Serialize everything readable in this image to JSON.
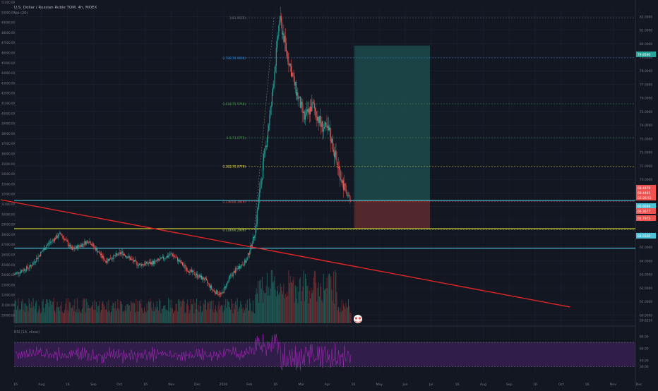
{
  "header": {
    "symbol": "U.S. Dollar / Russian Ruble TOM, 4h, MOEX",
    "volume_label": "Vol (20)"
  },
  "colors": {
    "background": "#131722",
    "grid": "#1e2230",
    "candle_up": "#26a69a",
    "candle_down": "#ef5350",
    "trendline": "#e02525",
    "yellow_line": "#f5f53a",
    "cyan_line": "#4dc3d8",
    "rsi_line": "#9c27b0",
    "rsi_band": "#3a1f55",
    "target_zone": "#1d4b4b",
    "stop_zone": "#5a2a2e",
    "text": "#787b86"
  },
  "chart_data": {
    "type": "candlestick",
    "price_axis_ticks": [
      "82.0000",
      "81.0000",
      "80.0000",
      "79.0000",
      "78.0000",
      "77.0000",
      "76.0000",
      "75.0000",
      "74.0000",
      "73.0000",
      "72.0000",
      "71.0000",
      "70.0000",
      "69.0000",
      "68.0000",
      "67.0000",
      "66.0000",
      "65.0000",
      "64.0000",
      "63.0000",
      "62.0000",
      "61.0000",
      "60.0000",
      "59.6250"
    ],
    "volume_axis_ticks": [
      "51000.00",
      "50000.00",
      "49000.00",
      "48000.00",
      "47000.00",
      "46000.00",
      "45000.00",
      "44000.00",
      "43000.00",
      "42000.00",
      "41000.00",
      "40000.00",
      "39000.00",
      "38000.00",
      "37000.00",
      "36000.00",
      "35000.00",
      "34000.00",
      "33000.00",
      "32000.00",
      "31000.00",
      "30000.00",
      "29000.00",
      "28000.00",
      "27000.00",
      "26000.00",
      "25000.00",
      "24000.00",
      "23000.00",
      "22000.00",
      "21000.00",
      "20000.00"
    ],
    "rsi_axis_ticks": [
      "80.00",
      "60.00",
      "40.00",
      "30.00"
    ],
    "time_axis_ticks": [
      "16",
      "Aug",
      "16",
      "Sep",
      "Oct",
      "16",
      "Nov",
      "Dec",
      "2020",
      "Feb",
      "16",
      "Mar",
      "Apr",
      "16",
      "May",
      "Jun",
      "Jul",
      "16",
      "Aug",
      "Sep",
      "16",
      "Oct",
      "16",
      "Nov",
      "Dec"
    ],
    "price_labels": [
      {
        "text": "79.8590",
        "kind": "green"
      },
      {
        "text": "68.4979",
        "kind": "red"
      },
      {
        "text": "68.4465",
        "kind": "red"
      },
      {
        "text": "03:26:51",
        "kind": "red"
      },
      {
        "text": "66.9099",
        "kind": "cyan"
      },
      {
        "text": "66.3677",
        "kind": "red"
      },
      {
        "text": "65.7975",
        "kind": "red"
      },
      {
        "text": "64.9300",
        "kind": "cyan"
      }
    ],
    "fib_levels": [
      {
        "label": "1(81.9155)",
        "value": 81.9155
      },
      {
        "label": "0.786(78.9600)",
        "value": 78.96
      },
      {
        "label": "0.618(75.5750)",
        "value": 75.575
      },
      {
        "label": "0.5(73.0775)",
        "value": 73.0775
      },
      {
        "label": "0.382(70.9779)",
        "value": 70.9779
      },
      {
        "label": "0.236(68.3826)",
        "value": 68.3826
      },
      {
        "label": "0.118(66.2808)",
        "value": 66.2808
      }
    ],
    "horizontal_levels": [
      {
        "name": "cyan-upper",
        "value": 68.45
      },
      {
        "name": "yellow",
        "value": 66.37
      },
      {
        "name": "cyan-lower",
        "value": 64.93
      }
    ],
    "price_path": [
      {
        "x": 0,
        "y": 63.0
      },
      {
        "x": 10,
        "y": 63.6
      },
      {
        "x": 20,
        "y": 65.2
      },
      {
        "x": 28,
        "y": 66.0
      },
      {
        "x": 35,
        "y": 64.8
      },
      {
        "x": 45,
        "y": 65.5
      },
      {
        "x": 55,
        "y": 64.0
      },
      {
        "x": 65,
        "y": 64.6
      },
      {
        "x": 75,
        "y": 63.7
      },
      {
        "x": 85,
        "y": 63.9
      },
      {
        "x": 95,
        "y": 64.5
      },
      {
        "x": 105,
        "y": 63.3
      },
      {
        "x": 115,
        "y": 62.6
      },
      {
        "x": 120,
        "y": 61.8
      },
      {
        "x": 125,
        "y": 61.5
      },
      {
        "x": 130,
        "y": 62.8
      },
      {
        "x": 135,
        "y": 63.5
      },
      {
        "x": 140,
        "y": 64.0
      },
      {
        "x": 145,
        "y": 66.0
      },
      {
        "x": 150,
        "y": 71.0
      },
      {
        "x": 155,
        "y": 75.5
      },
      {
        "x": 160,
        "y": 81.9
      },
      {
        "x": 165,
        "y": 79.0
      },
      {
        "x": 170,
        "y": 76.5
      },
      {
        "x": 175,
        "y": 74.5
      },
      {
        "x": 180,
        "y": 75.5
      },
      {
        "x": 185,
        "y": 74.0
      },
      {
        "x": 190,
        "y": 73.5
      },
      {
        "x": 195,
        "y": 71.0
      },
      {
        "x": 200,
        "y": 69.0
      },
      {
        "x": 203,
        "y": 68.45
      }
    ],
    "trendline": {
      "start": {
        "x": -8,
        "y": 68.5
      },
      "end": {
        "x": 335,
        "y": 60.6
      }
    },
    "rsi": {
      "period": 14,
      "source": "close",
      "label": "RSI (14, close)",
      "upper": 70,
      "lower": 30
    },
    "position_box": {
      "entry": 68.45,
      "target": 79.86,
      "stop": 66.37
    }
  },
  "rsi_label": "RSI (14, close)"
}
